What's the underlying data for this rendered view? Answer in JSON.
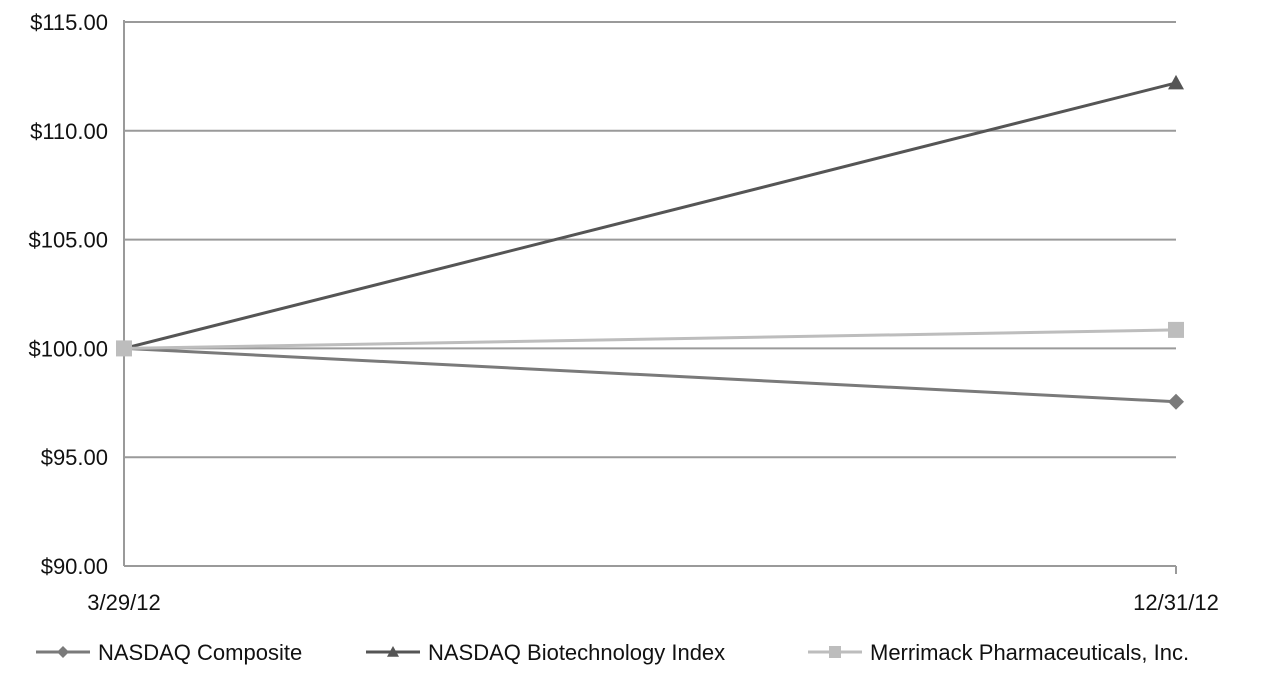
{
  "chart_data": {
    "type": "line",
    "title": "",
    "xlabel": "",
    "ylabel": "",
    "x": [
      "3/29/12",
      "12/31/12"
    ],
    "ylim": [
      90,
      115
    ],
    "yticks": [
      90,
      95,
      100,
      105,
      110,
      115
    ],
    "ytick_labels": [
      "$90.00",
      "$95.00",
      "$100.00",
      "$105.00",
      "$110.00",
      "$115.00"
    ],
    "grid": true,
    "legend_position": "bottom",
    "series": [
      {
        "name": "NASDAQ Composite",
        "values": [
          100.0,
          97.55
        ],
        "color": "#7a7a7a",
        "marker": "diamond"
      },
      {
        "name": "NASDAQ Biotechnology Index",
        "values": [
          100.0,
          112.2
        ],
        "color": "#555555",
        "marker": "triangle"
      },
      {
        "name": "Merrimack Pharmaceuticals, Inc.",
        "values": [
          100.0,
          100.85
        ],
        "color": "#bdbdbd",
        "marker": "square"
      }
    ]
  }
}
